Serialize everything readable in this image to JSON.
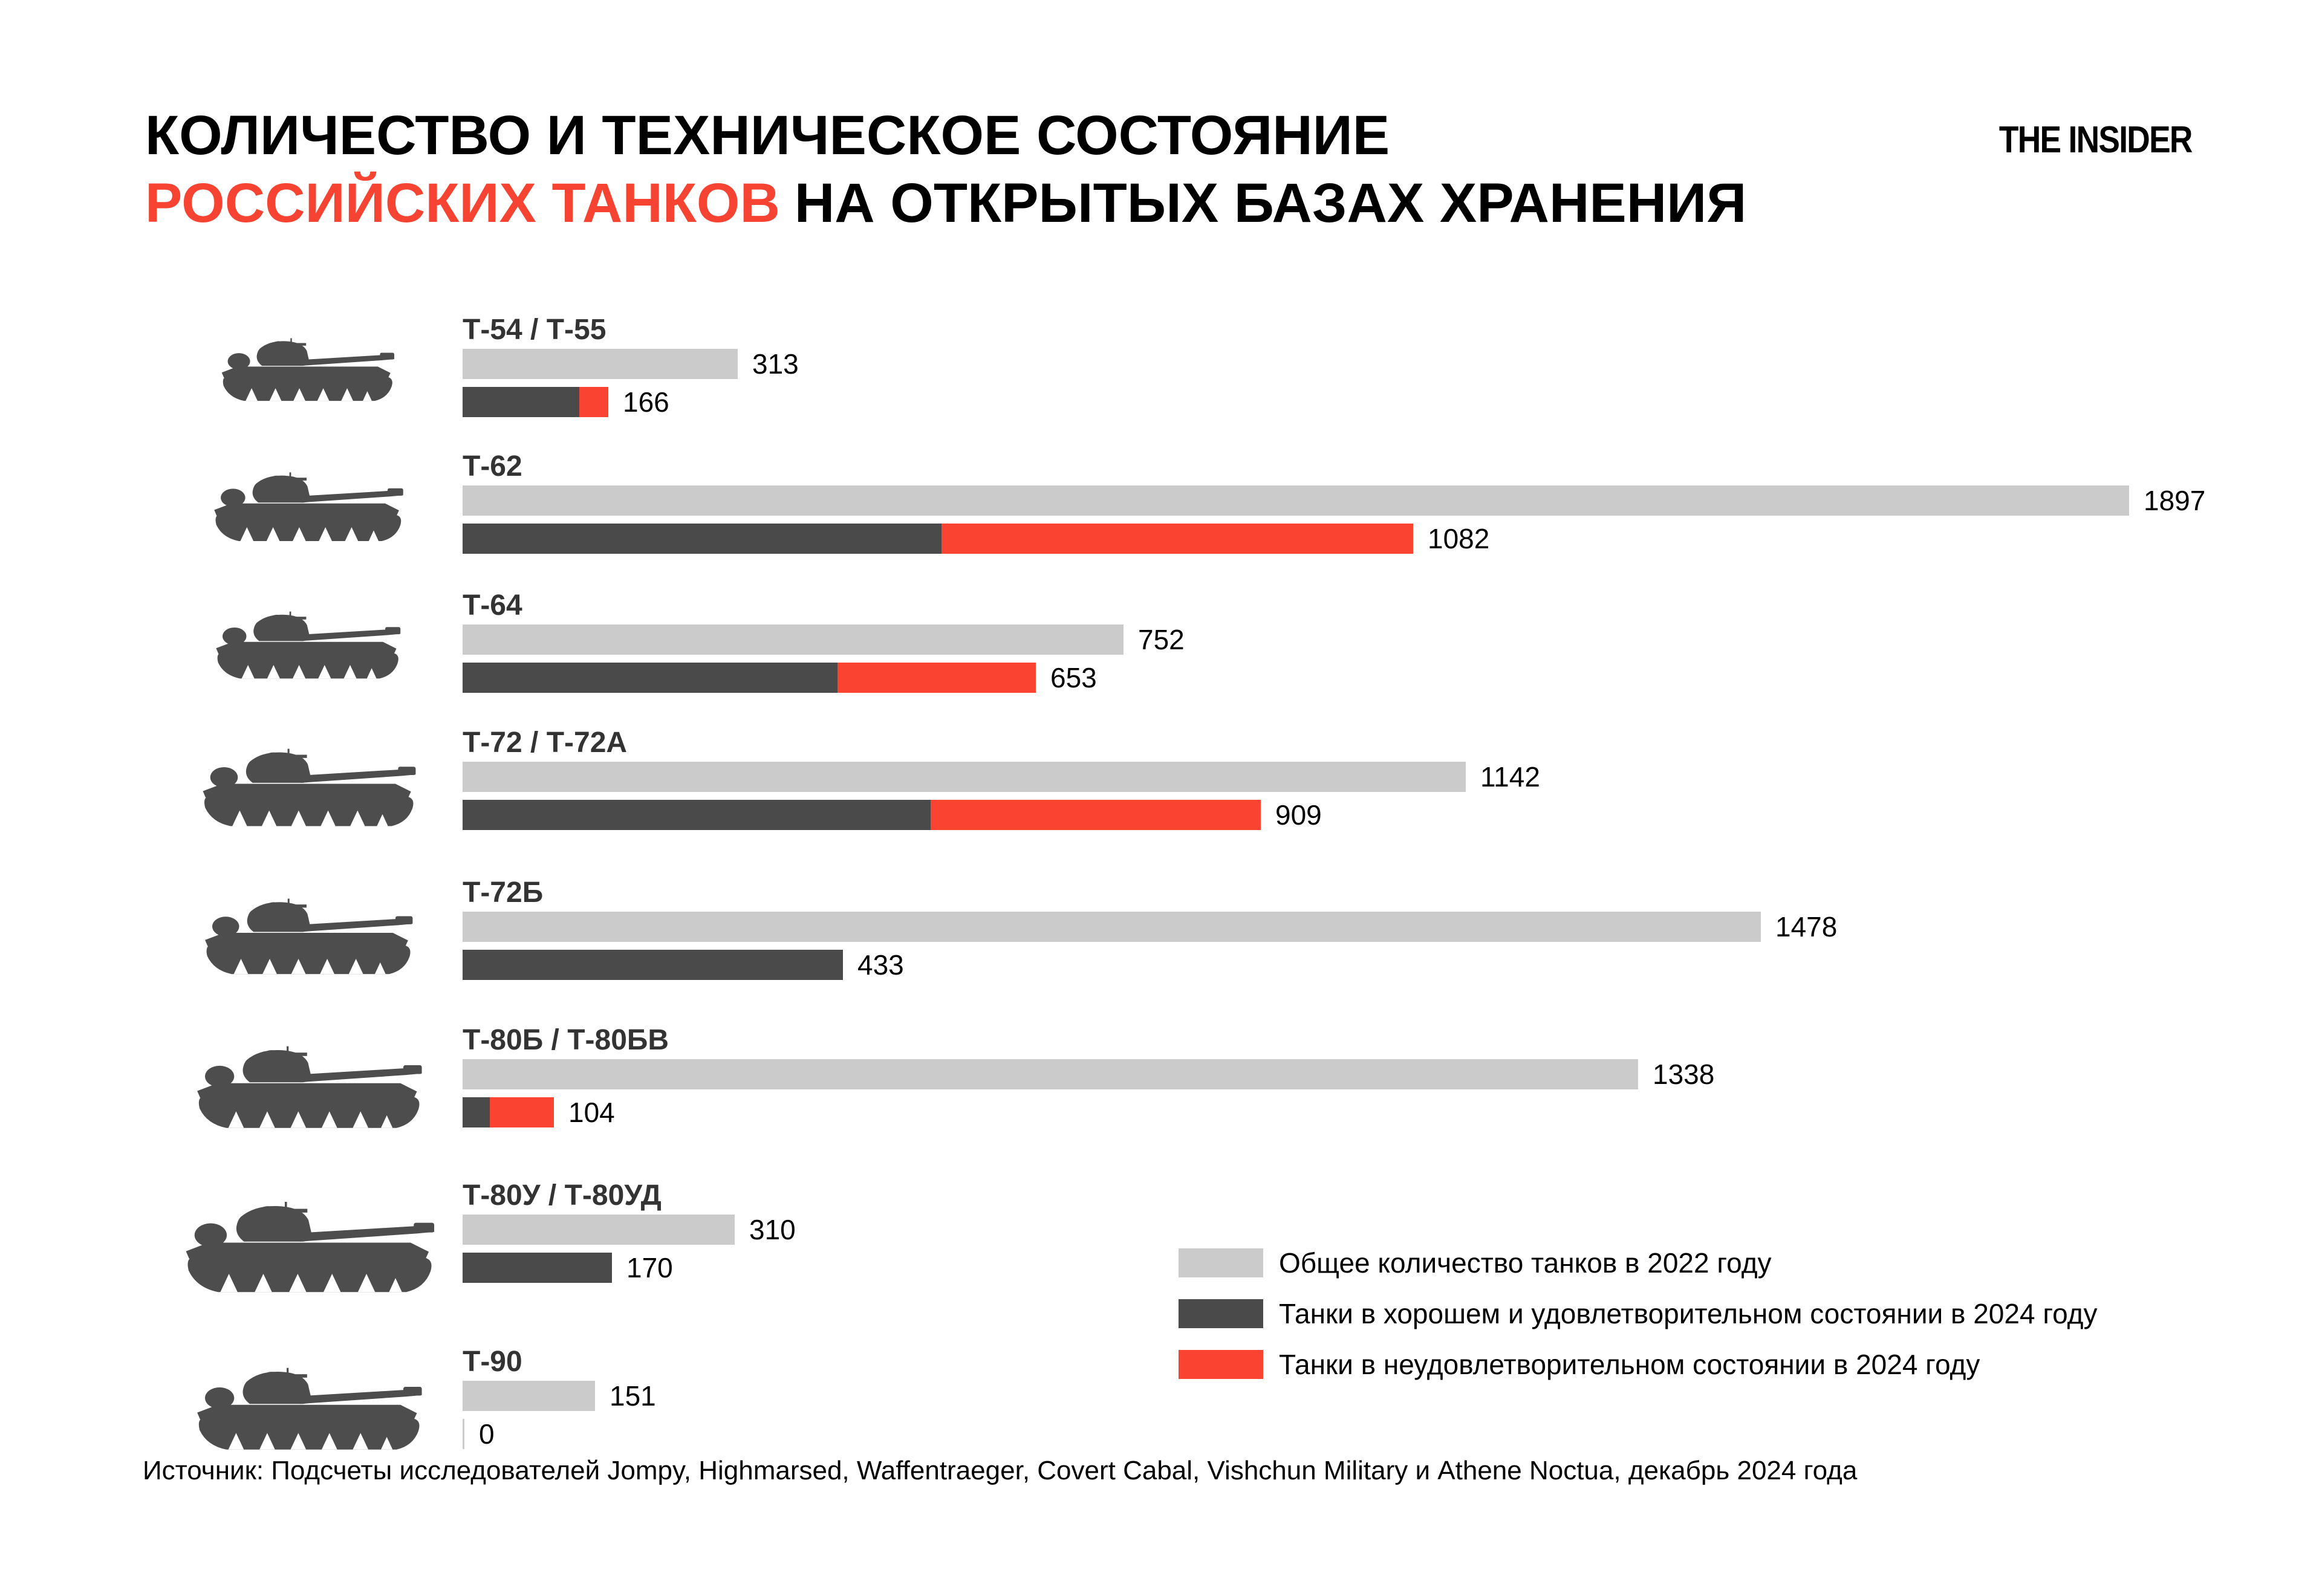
{
  "title": {
    "line1": "КОЛИЧЕСТВО И ТЕХНИЧЕСКОЕ СОСТОЯНИЕ",
    "line2_red": "РОССИЙСКИХ ТАНКОВ",
    "line2_rest": "НА ОТКРЫТЫХ БАЗАХ ХРАНЕНИЯ"
  },
  "brand": "THE INSIDER",
  "colors": {
    "bar_total_2022": "#cbcbcb",
    "bar_good_2024": "#4a4a4a",
    "bar_bad_2024": "#fb4332",
    "accent_red": "#f74432"
  },
  "legend": [
    {
      "swatch": "bar_total_2022",
      "label": "Общее количество танков в 2022 году"
    },
    {
      "swatch": "bar_good_2024",
      "label": "Танки в хорошем и удовлетворительном состоянии в 2024 году"
    },
    {
      "swatch": "bar_bad_2024",
      "label": "Танки в неудовлетворительном состоянии в 2024 году"
    }
  ],
  "source": "Источник: Подсчеты исследователей Jompy, Highmarsed, Waffentraeger, Covert Cabal, Vishchun Military и Athene Noctua, декабрь 2024 года",
  "chart_data": {
    "type": "bar",
    "orientation": "horizontal",
    "axis_max": 1897,
    "series_meaning": {
      "total_2022": "Общее количество танков в 2022 году (серый)",
      "total_2024": "Всего танков в 2024 году (подпись у составного бара)",
      "good_2024_est": "Танки в хорошем и удовлетворительном состоянии в 2024 году (тёмный сегмент, оценка по пикселям)",
      "bad_2024_est": "Танки в неудовлетворительном состоянии в 2024 году (красный сегмент, оценка по пикселям)"
    },
    "rows": [
      {
        "model": "Т-54 / Т-55",
        "total_2022": 313,
        "total_2024": 166,
        "good_2024_est": 133,
        "bad_2024_est": 33
      },
      {
        "model": "Т-62",
        "total_2022": 1897,
        "total_2024": 1082,
        "good_2024_est": 545,
        "bad_2024_est": 537
      },
      {
        "model": "Т-64",
        "total_2022": 752,
        "total_2024": 653,
        "good_2024_est": 427,
        "bad_2024_est": 226
      },
      {
        "model": "Т-72 / Т-72А",
        "total_2022": 1142,
        "total_2024": 909,
        "good_2024_est": 533,
        "bad_2024_est": 376
      },
      {
        "model": "Т-72Б",
        "total_2022": 1478,
        "total_2024": 433,
        "good_2024_est": 433,
        "bad_2024_est": 0
      },
      {
        "model": "Т-80Б / Т-80БВ",
        "total_2022": 1338,
        "total_2024": 104,
        "good_2024_est": 31,
        "bad_2024_est": 73
      },
      {
        "model": "Т-80У / Т-80УД",
        "total_2022": 310,
        "total_2024": 170,
        "good_2024_est": 170,
        "bad_2024_est": 0
      },
      {
        "model": "Т-90",
        "total_2022": 151,
        "total_2024": 0,
        "good_2024_est": 0,
        "bad_2024_est": 0
      }
    ]
  }
}
